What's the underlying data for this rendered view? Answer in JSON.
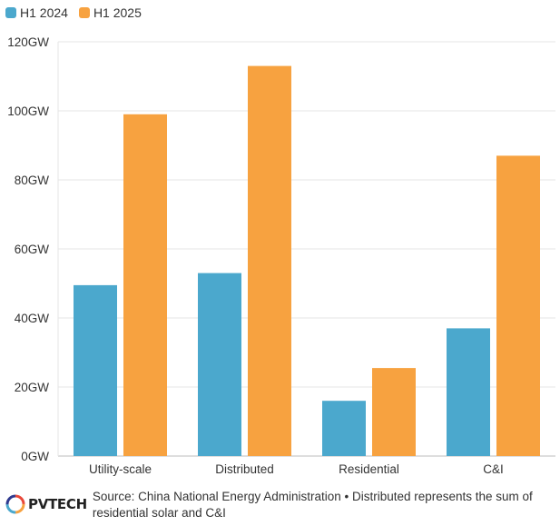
{
  "chart_data": {
    "type": "bar",
    "categories": [
      "Utility-scale",
      "Distributed",
      "Residential",
      "C&I"
    ],
    "series": [
      {
        "name": "H1 2024",
        "values": [
          49.5,
          53,
          16,
          37
        ],
        "color": "#4ba8cd"
      },
      {
        "name": "H1 2025",
        "values": [
          99,
          113,
          25.5,
          87
        ],
        "color": "#f7a240"
      }
    ],
    "ylim": [
      0,
      120
    ],
    "yticks": [
      "0GW",
      "20GW",
      "40GW",
      "60GW",
      "80GW",
      "100GW",
      "120GW"
    ],
    "ytick_values": [
      0,
      20,
      40,
      60,
      80,
      100,
      120
    ],
    "grid": true,
    "legend_position": "top-left"
  },
  "footer": {
    "logo_text": "PVTECH",
    "source": "Source: China National Energy Administration • Distributed represents the sum of residential solar and C&I"
  }
}
